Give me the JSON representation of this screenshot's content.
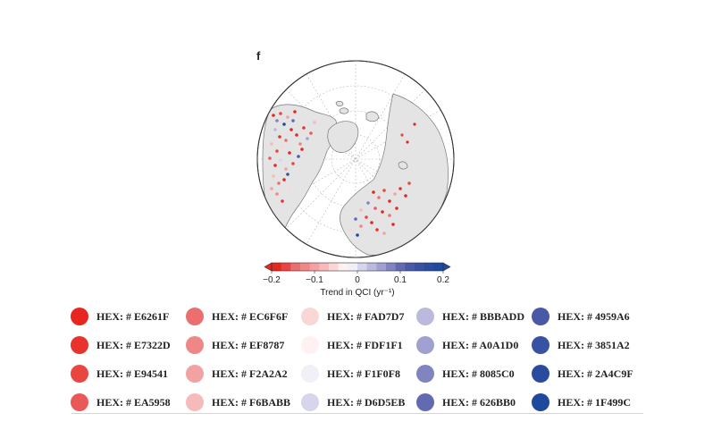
{
  "figure": {
    "panel_letter": "f",
    "colorbar": {
      "label": "Trend in QCI (yr⁻¹)",
      "ticks": [
        "−0.2",
        "−0.1",
        "0",
        "0.1",
        "0.2"
      ],
      "range": [
        -0.2,
        0.2
      ],
      "colors": [
        "#E6261F",
        "#E94541",
        "#EC6F6F",
        "#EF8787",
        "#F2A2A2",
        "#F6BABB",
        "#FAD7D7",
        "#FDF1F1",
        "#F1F0F8",
        "#D6D5EB",
        "#BBBADD",
        "#A0A1D0",
        "#8085C0",
        "#626BB0",
        "#4959A6",
        "#3851A2",
        "#2A4C9F",
        "#1F499C"
      ]
    }
  },
  "palette": {
    "columns": [
      [
        {
          "label": "HEX: # E6261F",
          "color": "#E6261F"
        },
        {
          "label": "HEX: # E7322D",
          "color": "#E7322D"
        },
        {
          "label": "HEX: # E94541",
          "color": "#E94541"
        },
        {
          "label": "HEX: # EA5958",
          "color": "#EA5958"
        }
      ],
      [
        {
          "label": "HEX: # EC6F6F",
          "color": "#EC6F6F"
        },
        {
          "label": "HEX: # EF8787",
          "color": "#EF8787"
        },
        {
          "label": "HEX: # F2A2A2",
          "color": "#F2A2A2"
        },
        {
          "label": "HEX: # F6BABB",
          "color": "#F6BABB"
        }
      ],
      [
        {
          "label": "HEX: # FAD7D7",
          "color": "#FAD7D7"
        },
        {
          "label": "HEX: # FDF1F1",
          "color": "#FDF1F1"
        },
        {
          "label": "HEX: # F1F0F8",
          "color": "#F1F0F8"
        },
        {
          "label": "HEX: # D6D5EB",
          "color": "#D6D5EB"
        }
      ],
      [
        {
          "label": "HEX: # BBBADD",
          "color": "#BBBADD"
        },
        {
          "label": "HEX: # A0A1D0",
          "color": "#A0A1D0"
        },
        {
          "label": "HEX: # 8085C0",
          "color": "#8085C0"
        },
        {
          "label": "HEX: # 626BB0",
          "color": "#626BB0"
        }
      ],
      [
        {
          "label": "HEX: # 4959A6",
          "color": "#4959A6"
        },
        {
          "label": "HEX: # 3851A2",
          "color": "#3851A2"
        },
        {
          "label": "HEX: # 2A4C9F",
          "color": "#2A4C9F"
        },
        {
          "label": "HEX: # 1F499C",
          "color": "#1F499C"
        }
      ]
    ]
  }
}
